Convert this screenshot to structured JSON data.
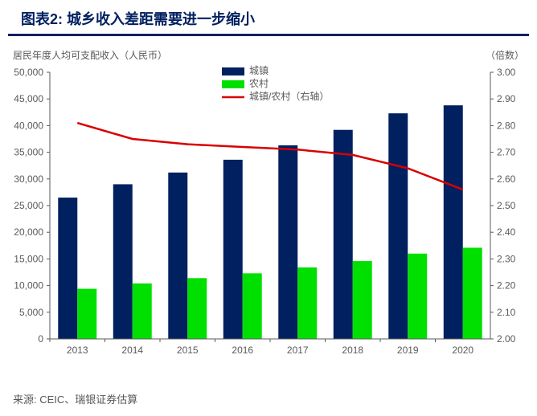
{
  "title": "图表2: 城乡收入差距需要进一步缩小",
  "y_left_label": "居民年度人均可支配收入（人民币）",
  "y_right_label": "（倍数）",
  "source": "来源: CEIC、瑞银证券估算",
  "legend": {
    "urban": "城镇",
    "rural": "农村",
    "ratio": "城镇/农村（右轴）"
  },
  "colors": {
    "urban": "#002060",
    "rural": "#00e000",
    "ratio": "#d90000",
    "axis": "#595959",
    "grid": "#d9d9d9",
    "tick_text": "#595959",
    "title": "#002060",
    "bg": "#ffffff"
  },
  "chart": {
    "type": "bar+line",
    "categories": [
      "2013",
      "2014",
      "2015",
      "2016",
      "2017",
      "2018",
      "2019",
      "2020"
    ],
    "urban": [
      26500,
      29000,
      31200,
      33600,
      36300,
      39200,
      42300,
      43800
    ],
    "rural": [
      9400,
      10400,
      11400,
      12300,
      13400,
      14600,
      16000,
      17100
    ],
    "ratio": [
      2.81,
      2.75,
      2.73,
      2.72,
      2.71,
      2.69,
      2.64,
      2.56
    ],
    "left_axis": {
      "min": 0,
      "max": 50000,
      "step": 5000
    },
    "right_axis": {
      "min": 2.0,
      "max": 3.0,
      "step": 0.1
    },
    "bar_group_width": 0.7,
    "line_width": 2.5,
    "font_size_tick": 12,
    "font_size_legend": 12
  }
}
